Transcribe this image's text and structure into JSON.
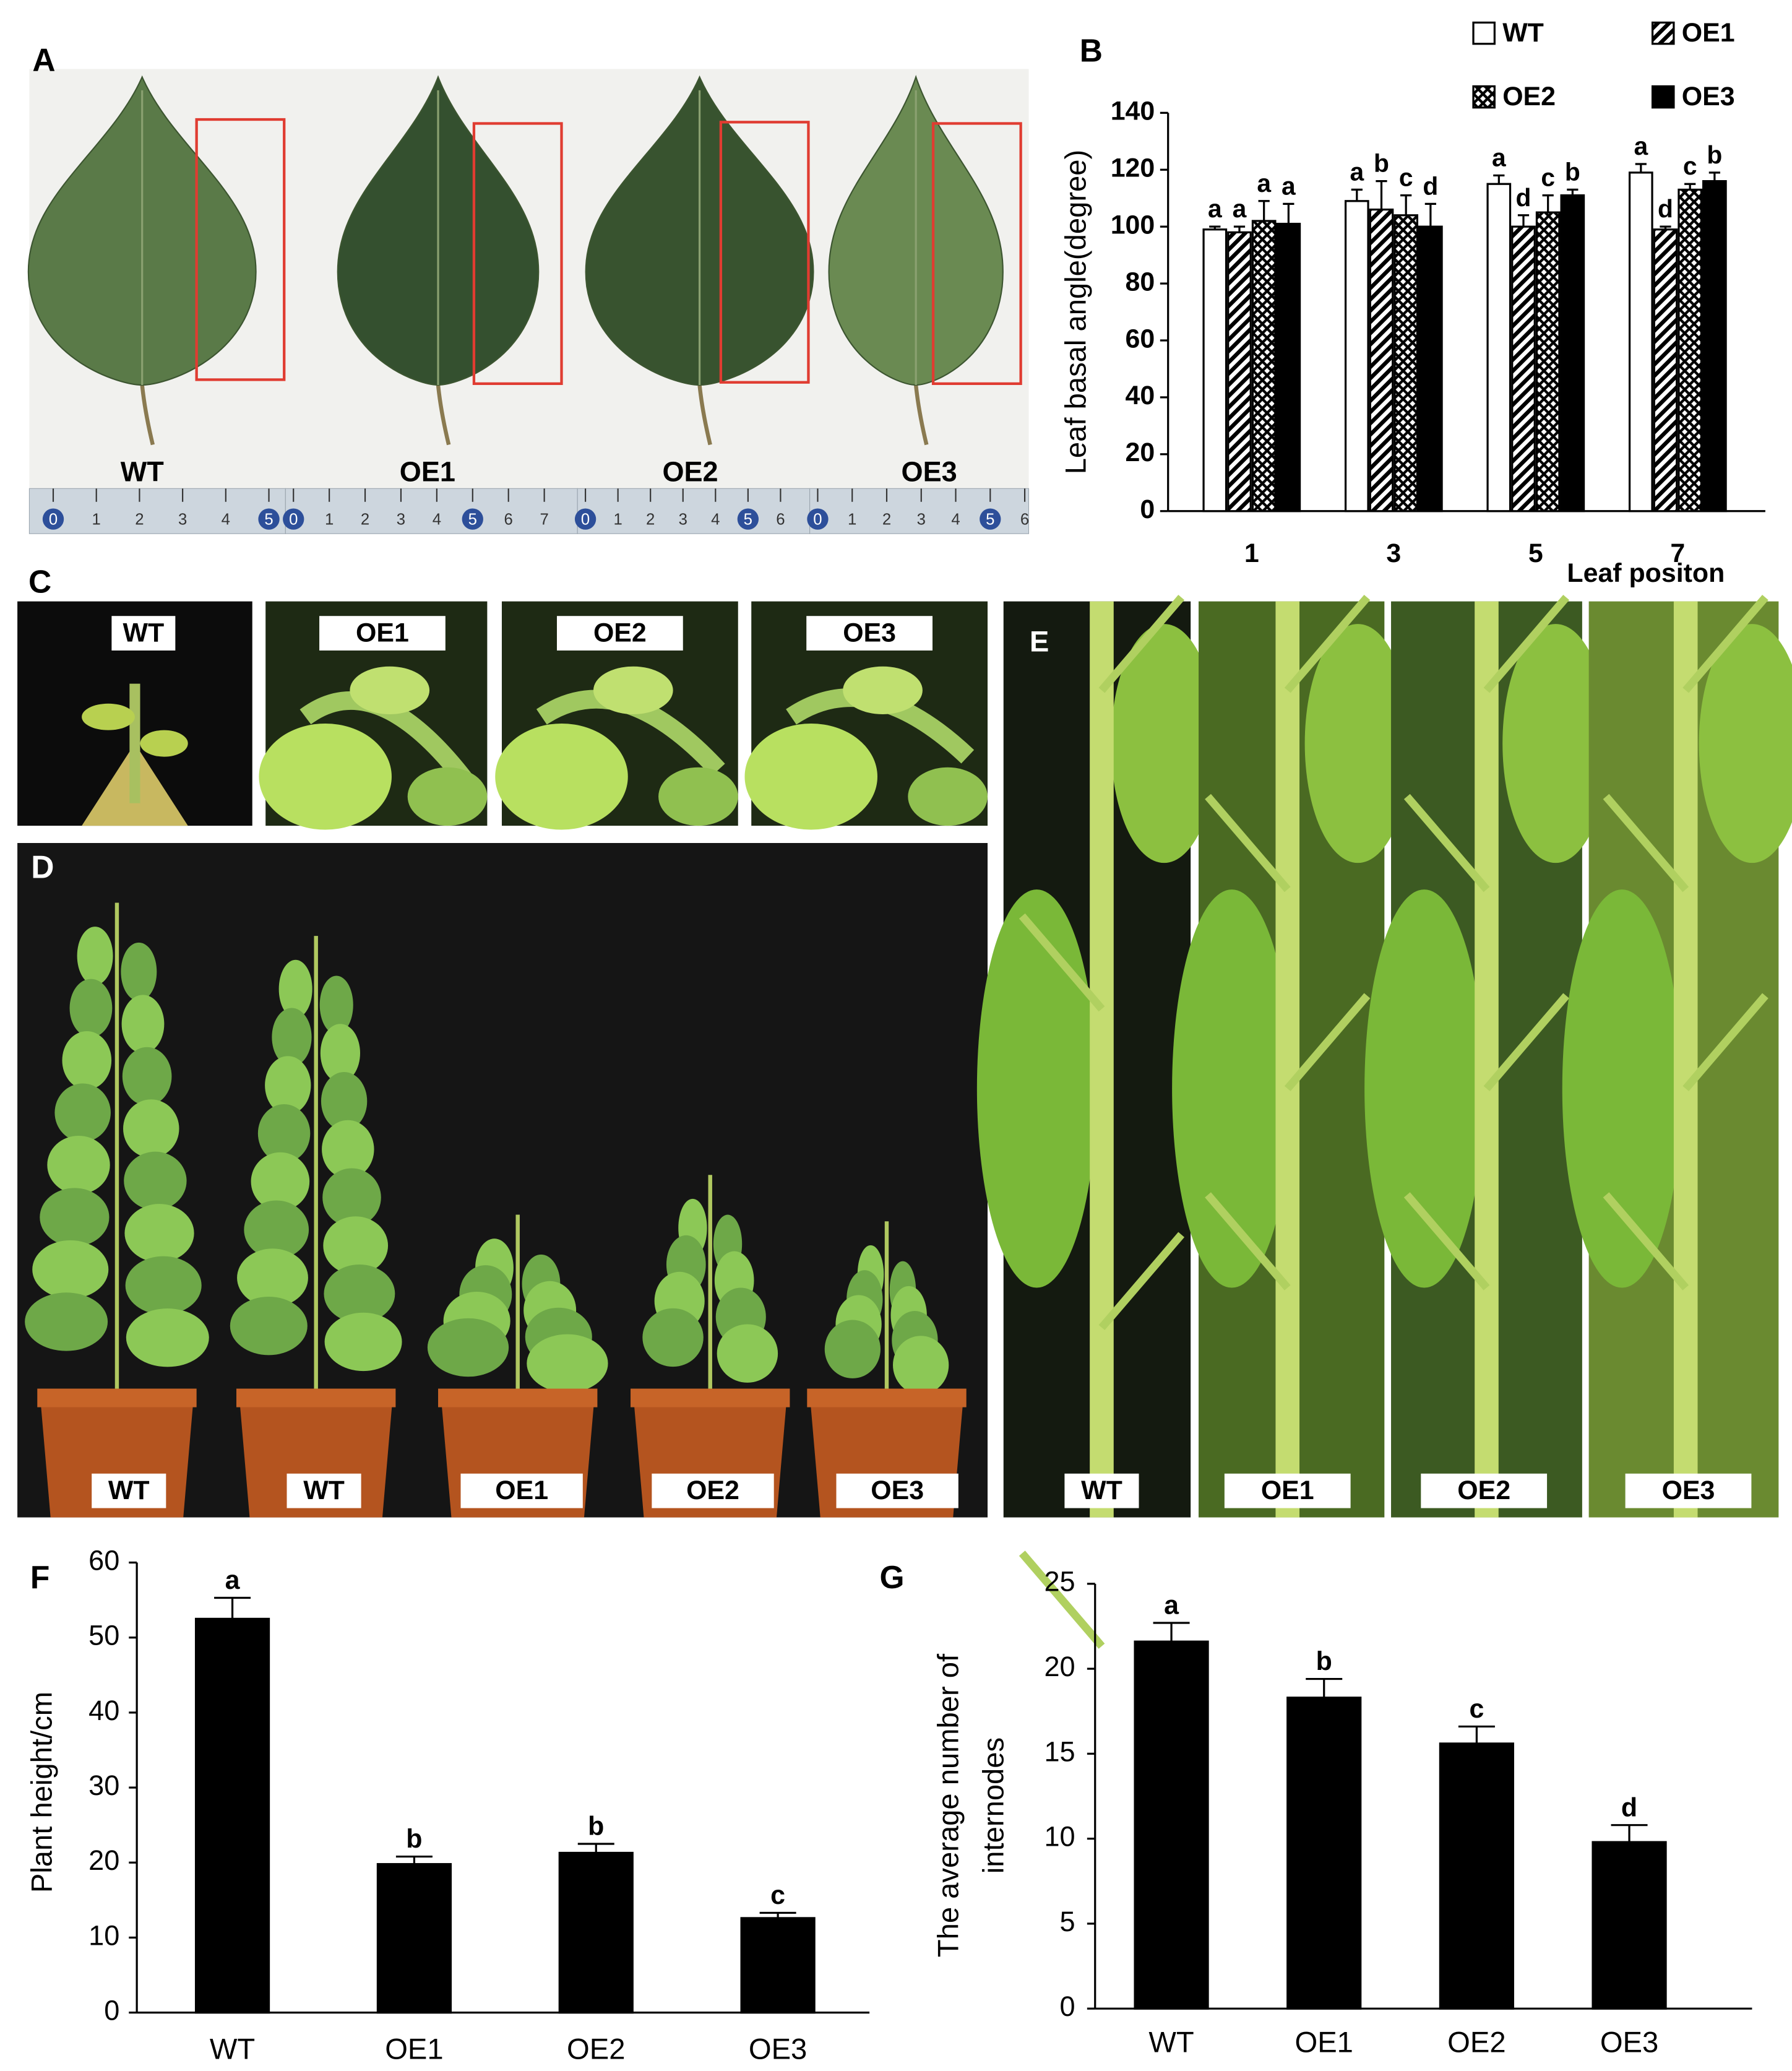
{
  "leaf_photo": {
    "letter": "A",
    "labels": [
      "WT",
      "OE1",
      "OE2",
      "OE3"
    ],
    "rulers": [
      [
        0,
        1,
        2,
        3,
        4,
        5
      ],
      [
        0,
        1,
        2,
        3,
        4,
        5,
        6,
        7
      ],
      [
        0,
        1,
        2,
        3,
        4,
        5,
        6
      ],
      [
        0,
        1,
        2,
        3,
        4,
        5,
        6
      ]
    ]
  },
  "apex_photos": {
    "letter": "C",
    "labels": [
      "WT",
      "OE1",
      "OE2",
      "OE3"
    ]
  },
  "plant_photo": {
    "letter": "D",
    "labels": [
      "WT",
      "WT",
      "OE1",
      "OE2",
      "OE3"
    ]
  },
  "stem_photos": {
    "letter": "E",
    "labels": [
      "WT",
      "OE1",
      "OE2",
      "OE3"
    ]
  },
  "chart_data": [
    {
      "type": "bar",
      "label": "B",
      "y_label": "Leaf basal angle(degree)",
      "x_label": "Leaf positon",
      "categories": [
        "1",
        "3",
        "5",
        "7"
      ],
      "series": [
        {
          "name": "WT",
          "color": "#ffffff",
          "pattern": "solid",
          "values": [
            99,
            109,
            115,
            119
          ],
          "errors": [
            1,
            4,
            3,
            3
          ],
          "significance": [
            "a",
            "a",
            "a",
            "a"
          ]
        },
        {
          "name": "OE1",
          "color": "#000000",
          "pattern": "hatch",
          "values": [
            98,
            106,
            100,
            99
          ],
          "errors": [
            2,
            10,
            4,
            1
          ],
          "significance": [
            "a",
            "b",
            "d",
            "d"
          ]
        },
        {
          "name": "OE2",
          "color": "#000000",
          "pattern": "crosshatch",
          "values": [
            102,
            104,
            105,
            113
          ],
          "errors": [
            7,
            7,
            6,
            2
          ],
          "significance": [
            "a",
            "c",
            "c",
            "c"
          ]
        },
        {
          "name": "OE3",
          "color": "#000000",
          "pattern": "solid",
          "values": [
            101,
            100,
            111,
            116
          ],
          "errors": [
            7,
            8,
            2,
            3
          ],
          "significance": [
            "a",
            "d",
            "b",
            "b"
          ]
        }
      ],
      "ylim": [
        0,
        140
      ],
      "yticks": [
        0,
        20,
        40,
        60,
        80,
        100,
        120,
        140
      ],
      "legend": "top"
    },
    {
      "type": "bar",
      "label": "F",
      "y_label": [
        "Plant height/cm"
      ],
      "categories": [
        "WT",
        "OE1",
        "OE2",
        "OE3"
      ],
      "values": [
        52.5,
        19.8,
        21.3,
        12.6
      ],
      "errors": [
        2.8,
        1.0,
        1.2,
        0.7
      ],
      "significance": [
        "a",
        "b",
        "b",
        "c"
      ],
      "color": "#000000",
      "ylim": [
        0,
        60
      ],
      "yticks": [
        0,
        10,
        20,
        30,
        40,
        50,
        60
      ]
    },
    {
      "type": "bar",
      "label": "G",
      "y_label": [
        "The average number of",
        "internodes"
      ],
      "categories": [
        "WT",
        "OE1",
        "OE2",
        "OE3"
      ],
      "values": [
        21.6,
        18.3,
        15.6,
        9.8
      ],
      "errors": [
        1.1,
        1.1,
        1.0,
        1.0
      ],
      "significance": [
        "a",
        "b",
        "c",
        "d"
      ],
      "color": "#000000",
      "ylim": [
        0,
        25
      ],
      "yticks": [
        0,
        5,
        10,
        15,
        20,
        25
      ]
    }
  ]
}
